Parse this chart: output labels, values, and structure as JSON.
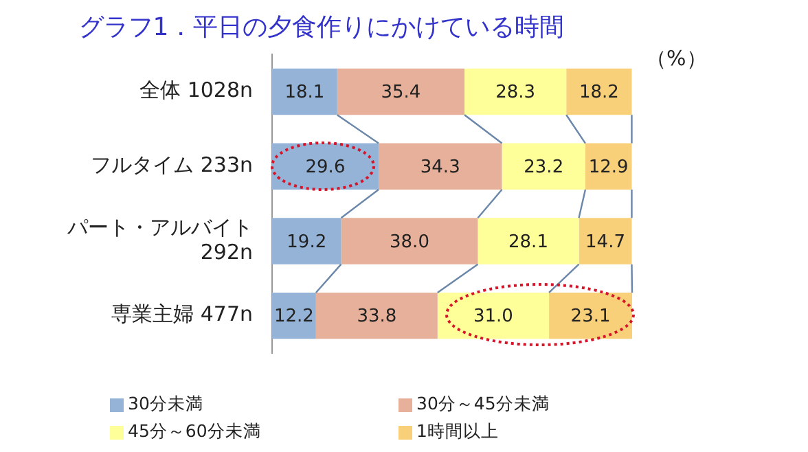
{
  "chart_data": {
    "type": "bar",
    "orientation": "horizontal",
    "stacked": true,
    "title": "グラフ1．平日の夕食作りにかけている時間",
    "categories": [
      "全体 1028n",
      "フルタイム 233n",
      "パート・アルバイト 292n",
      "専業主婦 477n"
    ],
    "series": [
      {
        "name": "30分未満",
        "color": "#95b3d7",
        "values": [
          18.1,
          29.6,
          19.2,
          12.2
        ],
        "value_labels": [
          "18.1",
          "29.6",
          "19.2",
          "12.2"
        ]
      },
      {
        "name": "30分～45分未満",
        "color": "#e6b09a",
        "values": [
          35.4,
          34.3,
          38.0,
          33.8
        ],
        "value_labels": [
          "35.4",
          "34.3",
          "38.0",
          "33.8"
        ]
      },
      {
        "name": "45分～60分未満",
        "color": "#ffff99",
        "values": [
          28.3,
          23.2,
          28.1,
          31.0
        ],
        "value_labels": [
          "28.3",
          "23.2",
          "28.1",
          "31.0"
        ]
      },
      {
        "name": "1時間以上",
        "color": "#f9d07a",
        "values": [
          18.2,
          12.9,
          14.7,
          23.1
        ],
        "value_labels": [
          "18.2",
          "12.9",
          "14.7",
          "23.1"
        ]
      }
    ],
    "legend": "bottom",
    "annotations": [
      "（%）"
    ]
  }
}
